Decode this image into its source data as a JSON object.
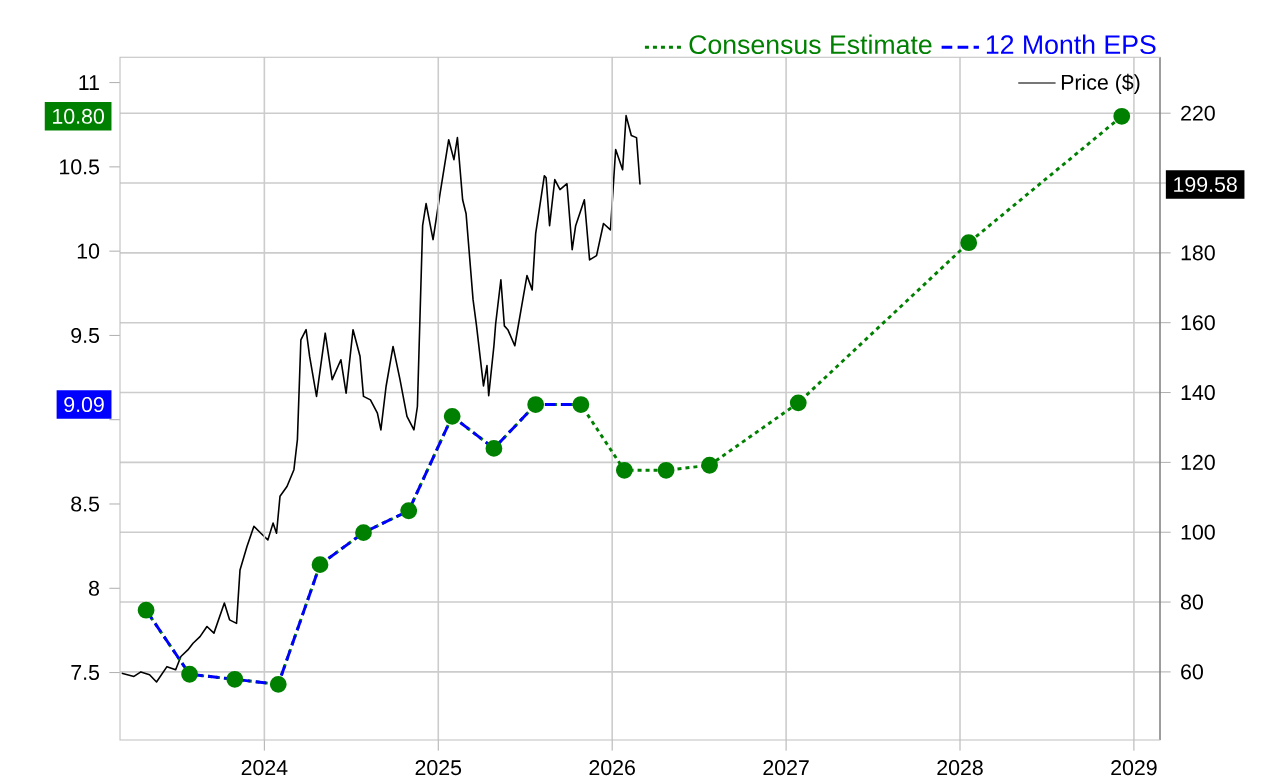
{
  "chart_data": {
    "type": "line",
    "xlim": [
      2023.17,
      2029.15
    ],
    "xticks": [
      2024,
      2025,
      2026,
      2027,
      2028,
      2029
    ],
    "ylim": [
      7.1,
      11.15
    ],
    "yticks": [
      7.5,
      8,
      8.5,
      {
        "value": 9,
        "label": null
      },
      9.5,
      10,
      10.5,
      11
    ],
    "y2lim": [
      40.5,
      236
    ],
    "y2ticks": [
      60,
      80,
      100,
      120,
      140,
      160,
      180,
      {
        "value": 200,
        "label": null
      },
      220
    ],
    "grid": true,
    "legend": "top right",
    "series": [
      {
        "name": "Price ($)",
        "axis": "y2",
        "color": "#000000",
        "line_style": "solid",
        "marker": "none",
        "x": [
          2023.18,
          2023.25,
          2023.29,
          2023.34,
          2023.38,
          2023.44,
          2023.49,
          2023.52,
          2023.56,
          2023.59,
          2023.63,
          2023.67,
          2023.71,
          2023.77,
          2023.8,
          2023.84,
          2023.86,
          2023.9,
          2023.94,
          2023.98,
          2024.02,
          2024.05,
          2024.07,
          2024.09,
          2024.13,
          2024.17,
          2024.19,
          2024.21,
          2024.24,
          2024.26,
          2024.3,
          2024.35,
          2024.39,
          2024.44,
          2024.47,
          2024.51,
          2024.55,
          2024.57,
          2024.61,
          2024.65,
          2024.67,
          2024.7,
          2024.74,
          2024.78,
          2024.82,
          2024.86,
          2024.88,
          2024.91,
          2024.93,
          2024.97,
          2025.01,
          2025.06,
          2025.09,
          2025.11,
          2025.14,
          2025.16,
          2025.2,
          2025.22,
          2025.26,
          2025.28,
          2025.29,
          2025.32,
          2025.33,
          2025.36,
          2025.38,
          2025.4,
          2025.44,
          2025.48,
          2025.51,
          2025.54,
          2025.56,
          2025.61,
          2025.62,
          2025.64,
          2025.67,
          2025.7,
          2025.74,
          2025.77,
          2025.79,
          2025.84,
          2025.87,
          2025.91,
          2025.95,
          2025.99,
          2026.02,
          2026.06,
          2026.08,
          2026.11,
          2026.14,
          2026.16
        ],
        "values": [
          59.6,
          58.7,
          60.0,
          59.2,
          57.1,
          61.5,
          60.6,
          64.4,
          66.3,
          68.2,
          70.1,
          73.0,
          71.1,
          79.7,
          74.9,
          73.9,
          89.2,
          95.9,
          101.7,
          99.7,
          97.8,
          102.6,
          99.7,
          110.3,
          113.1,
          117.9,
          126.5,
          155.1,
          158.0,
          150.4,
          138.9,
          157.0,
          143.7,
          149.4,
          139.8,
          158.0,
          150.4,
          138.9,
          137.9,
          134.1,
          129.3,
          141.8,
          153.2,
          143.7,
          133.2,
          129.3,
          136,
          187.8,
          194.1,
          183.8,
          196.9,
          212.4,
          206.7,
          213.0,
          195.2,
          191.2,
          166.6,
          159.1,
          141.9,
          147.7,
          139.1,
          153.4,
          159.7,
          172.3,
          159.1,
          158.0,
          153.4,
          164.9,
          173.5,
          169.4,
          185.5,
          202.1,
          201.5,
          187.8,
          201.0,
          198.1,
          199.8,
          180.9,
          187.8,
          195.2,
          178.0,
          179.2,
          188.4,
          186.6,
          209.6,
          203.8,
          219.3,
          213.6,
          213.0,
          199.58
        ]
      },
      {
        "name": "Consensus Estimate",
        "color": "#008000",
        "line_style": "dotted",
        "marker": "circle",
        "x": [
          2023.32,
          2023.57,
          2023.83,
          2024.08,
          2024.32,
          2024.57,
          2024.83,
          2025.08,
          2025.32,
          2025.56,
          2025.82,
          2026.07,
          2026.31,
          2026.56,
          2027.07,
          2028.05,
          2028.93
        ],
        "values": [
          7.87,
          7.49,
          7.46,
          7.43,
          8.14,
          8.33,
          8.46,
          9.02,
          8.83,
          9.09,
          9.09,
          8.7,
          8.7,
          8.73,
          9.1,
          10.05,
          10.8
        ]
      },
      {
        "name": "12 Month EPS",
        "color": "#0000ff",
        "line_style": "dashed",
        "marker": "none",
        "x": [
          2023.32,
          2023.57,
          2023.83,
          2024.08,
          2024.32,
          2024.57,
          2024.83,
          2025.08,
          2025.32,
          2025.56,
          2025.82
        ],
        "values": [
          7.87,
          7.49,
          7.46,
          7.43,
          8.14,
          8.33,
          8.46,
          9.02,
          8.83,
          9.09,
          9.09
        ]
      }
    ],
    "annotations": [
      "199.58",
      "10.80",
      "9.09"
    ]
  }
}
